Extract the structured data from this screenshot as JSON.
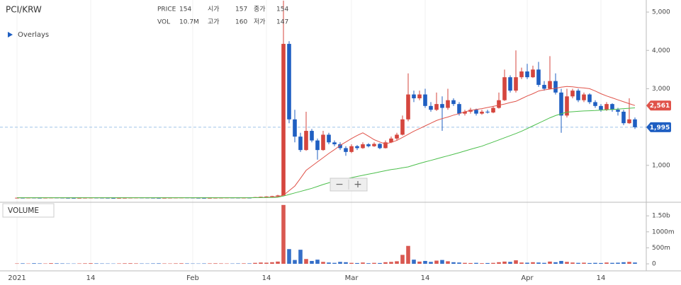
{
  "chart_data": {
    "type": "candlestick",
    "title": "PCI/KRW",
    "info": {
      "price_label": "PRICE",
      "price": 154,
      "open_label": "시가",
      "open": 157,
      "close_label": "종가",
      "close": 154,
      "vol_label": "VOL",
      "vol": "10.7M",
      "high_label": "고가",
      "high": 160,
      "low_label": "저가",
      "low": 147
    },
    "overlays_label": "Overlays",
    "zoom_out": "−",
    "zoom_in": "+",
    "up_color": "#d5463e",
    "down_color": "#1f5fc2",
    "grid": true,
    "x": [
      "2021-01-01",
      "2021-01-02",
      "2021-01-03",
      "2021-01-04",
      "2021-01-05",
      "2021-01-06",
      "2021-01-07",
      "2021-01-08",
      "2021-01-09",
      "2021-01-10",
      "2021-01-11",
      "2021-01-12",
      "2021-01-13",
      "2021-01-14",
      "2021-01-15",
      "2021-01-16",
      "2021-01-17",
      "2021-01-18",
      "2021-01-19",
      "2021-01-20",
      "2021-01-21",
      "2021-01-22",
      "2021-01-23",
      "2021-01-24",
      "2021-01-25",
      "2021-01-26",
      "2021-01-27",
      "2021-01-28",
      "2021-01-29",
      "2021-01-30",
      "2021-01-31",
      "2021-02-01",
      "2021-02-02",
      "2021-02-03",
      "2021-02-04",
      "2021-02-05",
      "2021-02-06",
      "2021-02-07",
      "2021-02-08",
      "2021-02-09",
      "2021-02-10",
      "2021-02-11",
      "2021-02-12",
      "2021-02-13",
      "2021-02-14",
      "2021-02-15",
      "2021-02-16",
      "2021-02-17",
      "2021-02-18",
      "2021-02-19",
      "2021-02-20",
      "2021-02-21",
      "2021-02-22",
      "2021-02-23",
      "2021-02-24",
      "2021-02-25",
      "2021-02-26",
      "2021-02-27",
      "2021-02-28",
      "2021-03-01",
      "2021-03-02",
      "2021-03-03",
      "2021-03-04",
      "2021-03-05",
      "2021-03-06",
      "2021-03-07",
      "2021-03-08",
      "2021-03-09",
      "2021-03-10",
      "2021-03-11",
      "2021-03-12",
      "2021-03-13",
      "2021-03-14",
      "2021-03-15",
      "2021-03-16",
      "2021-03-17",
      "2021-03-18",
      "2021-03-19",
      "2021-03-20",
      "2021-03-21",
      "2021-03-22",
      "2021-03-23",
      "2021-03-24",
      "2021-03-25",
      "2021-03-26",
      "2021-03-27",
      "2021-03-28",
      "2021-03-29",
      "2021-03-30",
      "2021-03-31",
      "2021-04-01",
      "2021-04-02",
      "2021-04-03",
      "2021-04-04",
      "2021-04-05",
      "2021-04-06",
      "2021-04-07",
      "2021-04-08",
      "2021-04-09",
      "2021-04-10",
      "2021-04-11",
      "2021-04-12",
      "2021-04-13",
      "2021-04-14",
      "2021-04-15",
      "2021-04-16",
      "2021-04-17",
      "2021-04-18",
      "2021-04-19",
      "2021-04-20"
    ],
    "open": [
      150,
      155,
      152,
      158,
      154,
      150,
      156,
      160,
      157,
      153,
      151,
      149,
      152,
      155,
      158,
      156,
      154,
      150,
      148,
      151,
      153,
      157,
      160,
      158,
      155,
      152,
      150,
      153,
      156,
      159,
      161,
      158,
      154,
      151,
      149,
      152,
      155,
      157,
      160,
      158,
      155,
      157,
      154,
      170,
      180,
      188,
      198,
      215,
      4170,
      2200,
      1750,
      1400,
      1900,
      1650,
      1400,
      1800,
      1600,
      1550,
      1450,
      1350,
      1500,
      1450,
      1550,
      1500,
      1560,
      1450,
      1600,
      1700,
      1800,
      2200,
      2850,
      2750,
      2850,
      2550,
      2450,
      2600,
      2500,
      2700,
      2600,
      2350,
      2400,
      2450,
      2350,
      2400,
      2380,
      2500,
      2700,
      3300,
      2950,
      3300,
      3450,
      3300,
      3500,
      3100,
      3000,
      3200,
      2900,
      2300,
      2800,
      2950,
      2700,
      2850,
      2650,
      2550,
      2450,
      2600,
      2450,
      2400,
      2100,
      2200
    ],
    "high": [
      160,
      160,
      163,
      163,
      159,
      161,
      165,
      165,
      162,
      158,
      156,
      157,
      160,
      163,
      163,
      161,
      159,
      155,
      156,
      158,
      162,
      165,
      165,
      163,
      160,
      157,
      158,
      161,
      164,
      166,
      166,
      163,
      159,
      156,
      157,
      160,
      162,
      165,
      165,
      163,
      162,
      162,
      175,
      185,
      195,
      205,
      230,
      5300,
      4240,
      2450,
      1850,
      2400,
      1950,
      1700,
      1900,
      1850,
      1650,
      1600,
      1500,
      1550,
      1530,
      1600,
      1580,
      1600,
      1580,
      1650,
      1750,
      1850,
      2300,
      3400,
      2950,
      2950,
      3000,
      2650,
      2900,
      2800,
      3000,
      2750,
      2650,
      2450,
      2500,
      2480,
      2450,
      2450,
      2550,
      2900,
      3500,
      3350,
      4000,
      3550,
      3650,
      3600,
      3700,
      3200,
      3850,
      3400,
      3000,
      3000,
      3000,
      3000,
      2900,
      2880,
      2700,
      2600,
      2650,
      2620,
      2500,
      2450,
      2750,
      2250
    ],
    "low": [
      145,
      147,
      147,
      149,
      145,
      145,
      151,
      152,
      148,
      146,
      144,
      144,
      147,
      150,
      151,
      149,
      145,
      143,
      143,
      146,
      148,
      152,
      153,
      150,
      147,
      145,
      145,
      148,
      151,
      154,
      153,
      149,
      146,
      144,
      144,
      147,
      150,
      152,
      153,
      150,
      150,
      149,
      150,
      165,
      172,
      180,
      190,
      210,
      2100,
      1600,
      1350,
      1380,
      1600,
      1150,
      1380,
      1550,
      1500,
      1400,
      1250,
      1320,
      1400,
      1430,
      1470,
      1480,
      1420,
      1440,
      1580,
      1650,
      1780,
      2150,
      2650,
      2700,
      2500,
      2400,
      2420,
      1900,
      2450,
      2550,
      2300,
      2300,
      2350,
      2300,
      2320,
      2350,
      2360,
      2480,
      2680,
      2900,
      2900,
      3250,
      3250,
      3280,
      3050,
      2950,
      2980,
      2850,
      1850,
      2250,
      2750,
      2650,
      2650,
      2600,
      2500,
      2400,
      2420,
      2400,
      2300,
      2050,
      2080,
      1950
    ],
    "close": [
      155,
      152,
      158,
      154,
      150,
      156,
      160,
      157,
      153,
      151,
      149,
      152,
      155,
      158,
      156,
      154,
      150,
      148,
      151,
      153,
      157,
      160,
      158,
      155,
      152,
      150,
      153,
      156,
      159,
      161,
      158,
      154,
      151,
      149,
      152,
      155,
      157,
      160,
      158,
      155,
      157,
      154,
      170,
      180,
      188,
      198,
      215,
      4170,
      2200,
      1750,
      1400,
      1900,
      1650,
      1400,
      1800,
      1600,
      1550,
      1450,
      1350,
      1500,
      1450,
      1550,
      1500,
      1560,
      1450,
      1600,
      1700,
      1800,
      2200,
      2850,
      2750,
      2850,
      2550,
      2450,
      2600,
      2500,
      2700,
      2600,
      2350,
      2400,
      2450,
      2350,
      2400,
      2380,
      2500,
      2700,
      3300,
      2950,
      3300,
      3450,
      3300,
      3500,
      3100,
      3000,
      3200,
      2900,
      2300,
      2800,
      2950,
      2700,
      2850,
      2650,
      2550,
      2450,
      2600,
      2450,
      2400,
      2100,
      2200,
      1995
    ],
    "last_label": {
      "value": 1995,
      "label": "1,995"
    },
    "xlim": [
      "2020-12-29",
      "2021-04-22"
    ],
    "xticks": [
      {
        "value": "2021-01-01",
        "label": "2021"
      },
      {
        "value": "2021-01-14",
        "label": "14"
      },
      {
        "value": "2021-02-01",
        "label": "Feb"
      },
      {
        "value": "2021-02-14",
        "label": "14"
      },
      {
        "value": "2021-03-01",
        "label": "Mar"
      },
      {
        "value": "2021-03-14",
        "label": "14"
      },
      {
        "value": "2021-04-01",
        "label": "Apr"
      },
      {
        "value": "2021-04-14",
        "label": "14"
      }
    ],
    "ylim": [
      37,
      5315
    ],
    "yticks": [
      {
        "value": 1000,
        "label": "1,000"
      },
      {
        "value": 3000,
        "label": "3,000"
      },
      {
        "value": 4000,
        "label": "4,000"
      },
      {
        "value": 5000,
        "label": "5,000"
      }
    ],
    "overlays": [
      {
        "color": "#e0534a",
        "values": [
          156,
          156,
          156,
          156,
          156,
          156,
          156,
          156,
          156,
          156,
          156,
          156,
          156,
          156,
          156,
          156,
          156,
          156,
          156,
          156,
          156,
          156,
          156,
          156,
          156,
          156,
          156,
          156,
          156,
          156,
          156,
          156,
          156,
          156,
          156,
          156,
          156,
          156,
          156,
          156,
          156,
          156,
          158,
          160,
          165,
          172,
          185,
          220,
          340,
          460,
          660,
          870,
          980,
          1090,
          1200,
          1310,
          1410,
          1520,
          1610,
          1700,
          1780,
          1850,
          1760,
          1670,
          1610,
          1560,
          1600,
          1650,
          1730,
          1810,
          1890,
          1960,
          2030,
          2100,
          2170,
          2220,
          2260,
          2310,
          2350,
          2400,
          2430,
          2460,
          2480,
          2510,
          2540,
          2570,
          2600,
          2640,
          2670,
          2740,
          2810,
          2870,
          2940,
          2970,
          2990,
          3010,
          3040,
          3060,
          3050,
          3030,
          3020,
          3000,
          2940,
          2870,
          2810,
          2760,
          2710,
          2660,
          2610,
          2561
        ],
        "last_label": {
          "value": 2561,
          "label": "2,561"
        }
      },
      {
        "color": "#4cbf4c",
        "values": [
          156,
          156,
          156,
          156,
          156,
          156,
          156,
          156,
          156,
          156,
          156,
          156,
          156,
          156,
          156,
          156,
          156,
          156,
          156,
          156,
          156,
          156,
          156,
          156,
          156,
          156,
          156,
          156,
          156,
          156,
          156,
          156,
          156,
          156,
          156,
          156,
          156,
          156,
          156,
          156,
          156,
          156,
          157,
          158,
          160,
          163,
          168,
          200,
          240,
          280,
          320,
          360,
          400,
          450,
          500,
          545,
          590,
          620,
          650,
          680,
          710,
          740,
          770,
          800,
          830,
          860,
          890,
          910,
          935,
          960,
          1005,
          1050,
          1090,
          1130,
          1170,
          1210,
          1250,
          1290,
          1330,
          1375,
          1420,
          1460,
          1500,
          1555,
          1610,
          1665,
          1720,
          1775,
          1830,
          1890,
          1960,
          2030,
          2100,
          2170,
          2240,
          2300,
          2345,
          2390,
          2400,
          2410,
          2420,
          2425,
          2430,
          2440,
          2450,
          2460,
          2470,
          2480,
          2490,
          2500
        ]
      }
    ],
    "volume_panel": {
      "title": "VOLUME",
      "values": [
        12,
        15,
        10,
        18,
        14,
        11,
        20,
        16,
        13,
        10,
        9,
        12,
        15,
        19,
        14,
        11,
        10,
        9,
        12,
        16,
        18,
        14,
        11,
        10,
        13,
        15,
        12,
        11,
        14,
        17,
        13,
        10,
        9,
        12,
        14,
        16,
        13,
        11,
        10,
        12,
        15,
        14,
        30,
        40,
        35,
        50,
        70,
        1840,
        460,
        120,
        440,
        150,
        90,
        130,
        60,
        40,
        30,
        60,
        50,
        30,
        25,
        40,
        20,
        30,
        25,
        50,
        60,
        80,
        280,
        560,
        130,
        70,
        90,
        60,
        100,
        120,
        80,
        50,
        40,
        30,
        25,
        30,
        20,
        25,
        30,
        50,
        70,
        60,
        110,
        40,
        35,
        50,
        40,
        30,
        70,
        50,
        90,
        60,
        40,
        30,
        35,
        25,
        30,
        25,
        40,
        30,
        35,
        50,
        60,
        40
      ],
      "ylim": [
        -220,
        1880
      ],
      "yticks": [
        {
          "value": 0,
          "label": "0"
        },
        {
          "value": 500,
          "label": "500m"
        },
        {
          "value": 1000,
          "label": "1000m"
        },
        {
          "value": 1500,
          "label": "1.50b"
        }
      ]
    }
  }
}
